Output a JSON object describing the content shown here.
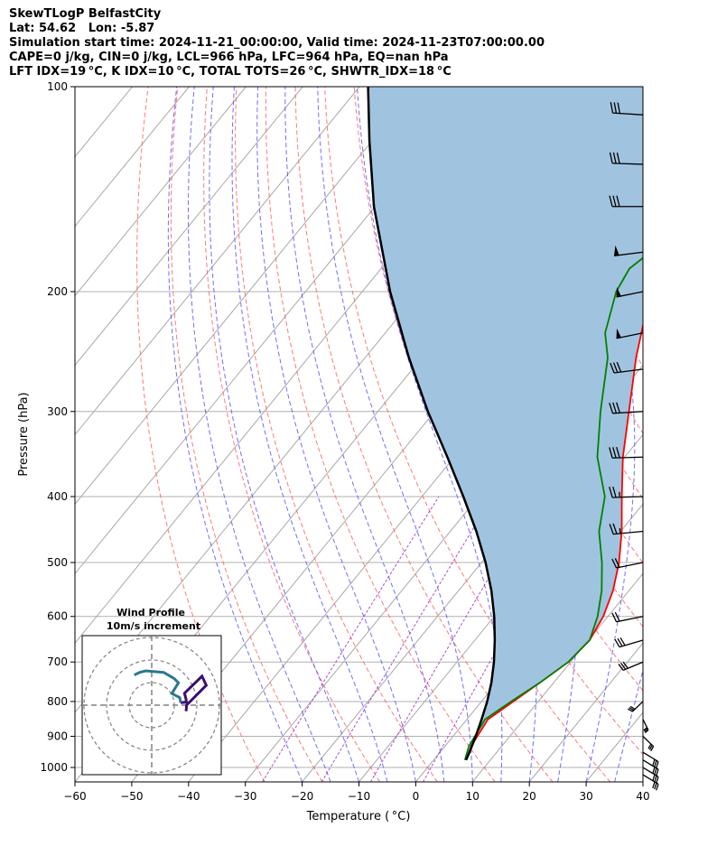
{
  "title_lines": [
    "SkewTLogP BelfastCity",
    "Lat: 54.62   Lon: -5.87",
    "Simulation start time: 2024-11-21_00:00:00, Valid time: 2024-11-23T07:00:00.00",
    "CAPE=0 j/kg, CIN=0 j/kg, LCL=966 hPa, LFC=964 hPa, EQ=nan hPa",
    "LFT IDX=19 °C, K IDX=10 °C, TOTAL TOTS=26 °C, SHWTR_IDX=18 °C"
  ],
  "chart_data": {
    "type": "line",
    "subtype": "skew-t log-p",
    "xlabel": "Temperature ( °C)",
    "ylabel": "Pressure (hPa)",
    "xlim": [
      -60,
      40
    ],
    "ylim": [
      1050,
      100
    ],
    "y_scale": "log",
    "x_ticks": [
      -60,
      -50,
      -40,
      -30,
      -20,
      -10,
      0,
      10,
      20,
      30,
      40
    ],
    "y_ticks": [
      100,
      200,
      300,
      400,
      500,
      600,
      700,
      800,
      900,
      1000
    ],
    "grid": true,
    "colors": {
      "temperature": "#ff0000",
      "dewpoint": "#008000",
      "parcel": "#000000",
      "cape_fill": "#a0c4df",
      "dry_adiabats": "#ff6060",
      "moist_adiabats": "#4a4aff",
      "mixing_ratio": "#9b30c8"
    },
    "series": [
      {
        "key": "temperature",
        "pressure": [
          975,
          930,
          850,
          800,
          750,
          700,
          650,
          600,
          550,
          500,
          450,
          400,
          350,
          300,
          250,
          200,
          185,
          170,
          150,
          130,
          115,
          100
        ],
        "values": [
          5.7,
          4.6,
          3.7,
          5.6,
          7.6,
          9.6,
          10.2,
          9.2,
          7.2,
          4.2,
          0.2,
          -4.8,
          -10.3,
          -15.8,
          -22.3,
          -29.3,
          -31.0,
          -31.0,
          -29.3,
          -24.8,
          -22.8,
          -22.5
        ]
      },
      {
        "key": "dewpoint",
        "pressure": [
          975,
          930,
          850,
          800,
          750,
          700,
          650,
          600,
          550,
          500,
          450,
          400,
          350,
          300,
          250,
          230,
          200,
          185,
          170,
          150,
          130,
          115,
          100
        ],
        "values": [
          5.5,
          4.2,
          3.2,
          5.2,
          7.6,
          9.6,
          10.2,
          8.2,
          5.2,
          1.2,
          -3.8,
          -7.8,
          -14.8,
          -20.8,
          -27.3,
          -31.3,
          -35.3,
          -36.3,
          -34.3,
          -30.3,
          -31.3,
          -28.8,
          -27.8
        ]
      },
      {
        "key": "parcel",
        "pressure": [
          975,
          950,
          900,
          850,
          800,
          750,
          700,
          650,
          600,
          550,
          500,
          450,
          400,
          350,
          300,
          250,
          200,
          150,
          120,
          100
        ],
        "values": [
          5.7,
          5.2,
          4.0,
          2.6,
          1.0,
          -1.0,
          -3.5,
          -6.5,
          -10.0,
          -14.2,
          -19.3,
          -25.4,
          -32.7,
          -41.2,
          -51.2,
          -62.3,
          -75.1,
          -90.2,
          -100.5,
          -108.5
        ]
      }
    ],
    "wind_barbs": {
      "pressure": [
        110,
        130,
        150,
        175,
        200,
        230,
        260,
        300,
        350,
        400,
        450,
        500,
        600,
        650,
        700,
        800,
        850,
        900,
        950,
        975,
        1000,
        1025
      ],
      "speed_kt": [
        30,
        30,
        30,
        50,
        50,
        50,
        30,
        30,
        30,
        25,
        25,
        20,
        20,
        30,
        30,
        30,
        30,
        30,
        30,
        30,
        30,
        30
      ],
      "direction_deg": [
        280,
        275,
        270,
        250,
        240,
        240,
        250,
        260,
        265,
        265,
        255,
        240,
        240,
        230,
        220,
        200,
        170,
        160,
        150,
        150,
        150,
        150
      ]
    },
    "inset": {
      "title_line1": "Wind Profile",
      "title_line2": "10m/s increment",
      "rings": 3
    }
  }
}
